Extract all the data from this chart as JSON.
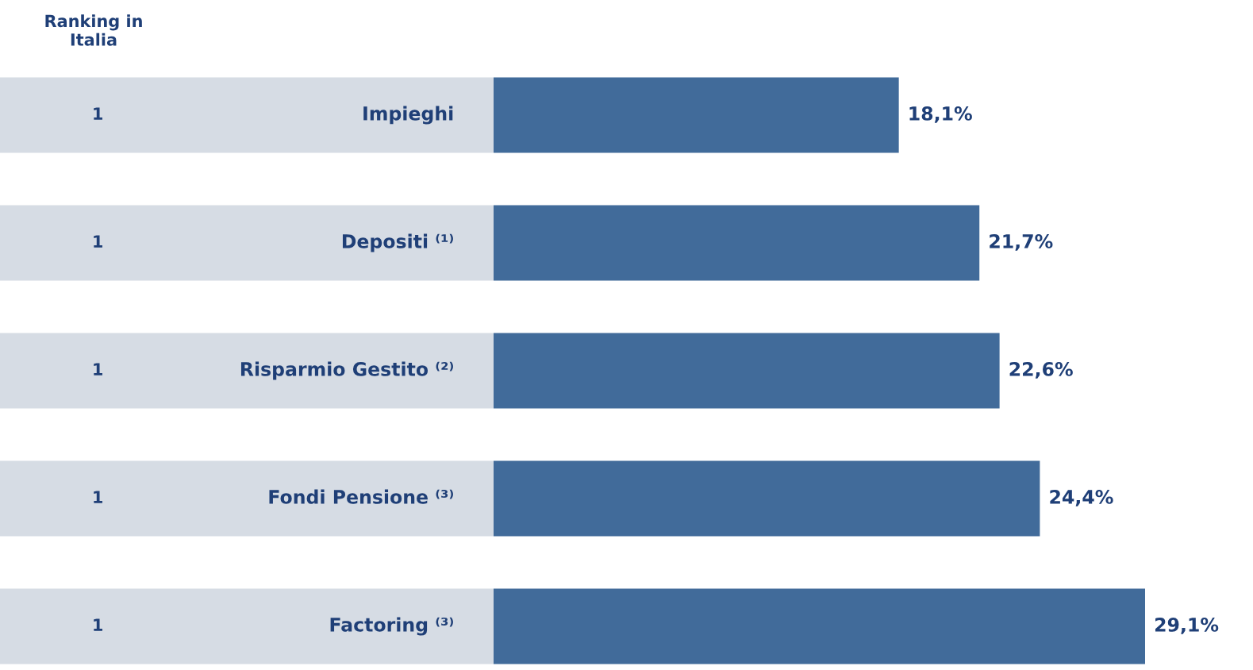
{
  "chart_data": {
    "type": "bar",
    "orientation": "horizontal",
    "categories": [
      "Impieghi",
      "Depositi ⁽¹⁾",
      "Risparmio Gestito ⁽²⁾",
      "Fondi Pensione ⁽³⁾",
      "Factoring ⁽³⁾"
    ],
    "values": [
      18.1,
      21.7,
      22.6,
      24.4,
      29.1
    ],
    "value_labels": [
      "18,1%",
      "21,7%",
      "22,6%",
      "24,4%",
      "29,1%"
    ],
    "color": "#416b9a",
    "annotations": [
      "Ranking in\nItalia",
      "1",
      "1",
      "1",
      "1",
      "1"
    ]
  }
}
